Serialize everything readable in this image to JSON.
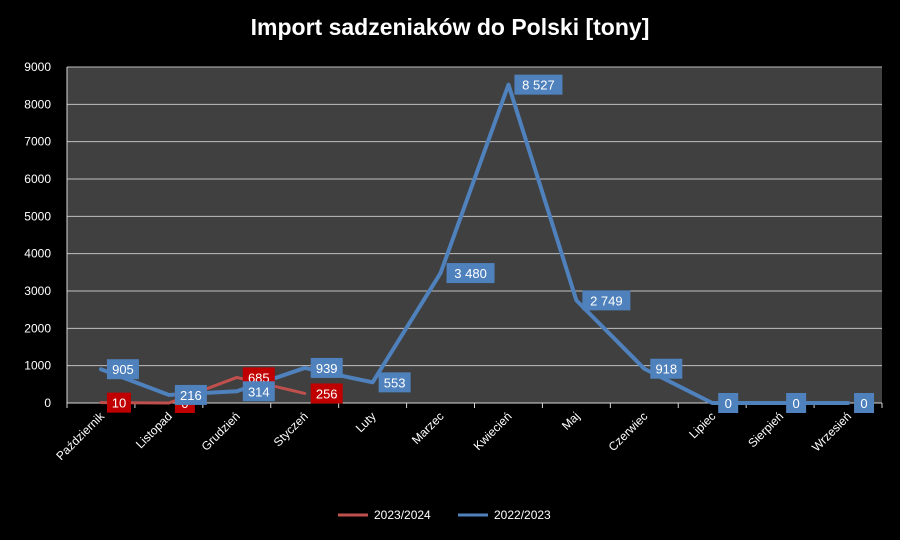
{
  "chart_data": {
    "type": "line",
    "title": "Import sadzeniaków do Polski [tony]",
    "categories": [
      "Październik",
      "Listopad",
      "Grudzień",
      "Styczeń",
      "Luty",
      "Marzec",
      "Kwiecień",
      "Maj",
      "Czerwiec",
      "Lipiec",
      "Sierpień",
      "Wrzesień"
    ],
    "series": [
      {
        "name": "2023/2024",
        "color": "#c0504d",
        "label_color": "#c00000",
        "values": [
          10,
          0,
          685,
          256,
          null,
          null,
          null,
          null,
          null,
          null,
          null,
          null
        ],
        "labels": [
          "10",
          "0",
          "685",
          "256",
          null,
          null,
          null,
          null,
          null,
          null,
          null,
          null
        ]
      },
      {
        "name": "2022/2023",
        "color": "#4f81bd",
        "label_color": "#4f81bd",
        "values": [
          905,
          216,
          314,
          939,
          553,
          3480,
          8527,
          2749,
          918,
          0,
          0,
          0
        ],
        "labels": [
          "905",
          "216",
          "314",
          "939",
          "553",
          "3 480",
          "8 527",
          "2 749",
          "918",
          "0",
          "0",
          "0"
        ]
      }
    ],
    "ylim": [
      0,
      9000
    ],
    "yticks": [
      0,
      1000,
      2000,
      3000,
      4000,
      5000,
      6000,
      7000,
      8000,
      9000
    ],
    "grid": true,
    "legend_position": "bottom",
    "plot_background": "#404040",
    "page_background": "#000000"
  }
}
